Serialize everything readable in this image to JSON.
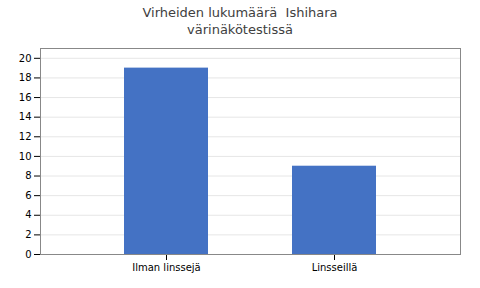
{
  "chart_data": {
    "type": "bar",
    "title": "Virheiden lukumäärä  Ishihara\nvärinäkötestissä",
    "categories": [
      "Ilman linssejä",
      "Linsseillä"
    ],
    "values": [
      19,
      9
    ],
    "color": "#4472C4",
    "ylim": [
      0,
      21
    ],
    "yticks": [
      0,
      2,
      4,
      6,
      8,
      10,
      12,
      14,
      16,
      18,
      20
    ],
    "grid": true
  }
}
